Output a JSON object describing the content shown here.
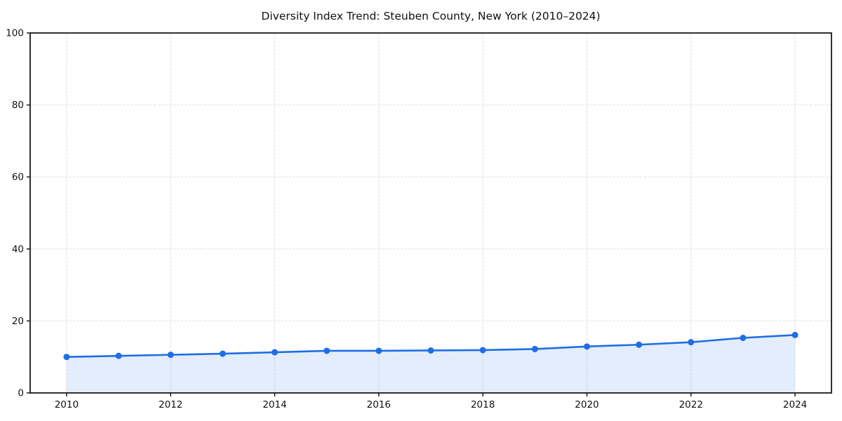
{
  "page": {
    "background_color": "#ffffff"
  },
  "chart_data": {
    "type": "line",
    "title": "Diversity Index Trend: Steuben County, New York (2010–2024)",
    "xlabel": "",
    "ylabel": "",
    "x": [
      2010,
      2011,
      2012,
      2013,
      2014,
      2015,
      2016,
      2017,
      2018,
      2019,
      2020,
      2021,
      2022,
      2023,
      2024
    ],
    "series": [
      {
        "name": "Diversity Index",
        "values": [
          10.0,
          10.3,
          10.6,
          10.9,
          11.3,
          11.7,
          11.7,
          11.8,
          11.9,
          12.2,
          12.9,
          13.4,
          14.1,
          15.3,
          16.1
        ]
      }
    ],
    "xlim": [
      2009.3,
      2024.7
    ],
    "ylim": [
      0,
      100
    ],
    "xticks": [
      2010,
      2012,
      2014,
      2016,
      2018,
      2020,
      2022,
      2024
    ],
    "yticks": [
      0,
      20,
      40,
      60,
      80,
      100
    ],
    "grid": true,
    "grid_style": "dashed",
    "legend_position": "none",
    "line_color": "#1e6ee6",
    "marker_color": "#1e6ee6",
    "fill_color": "rgba(30, 110, 230, 0.12)",
    "grid_color": "#e0e0e0",
    "spine_color": "#1a1a1a",
    "text_color": "#111111"
  }
}
